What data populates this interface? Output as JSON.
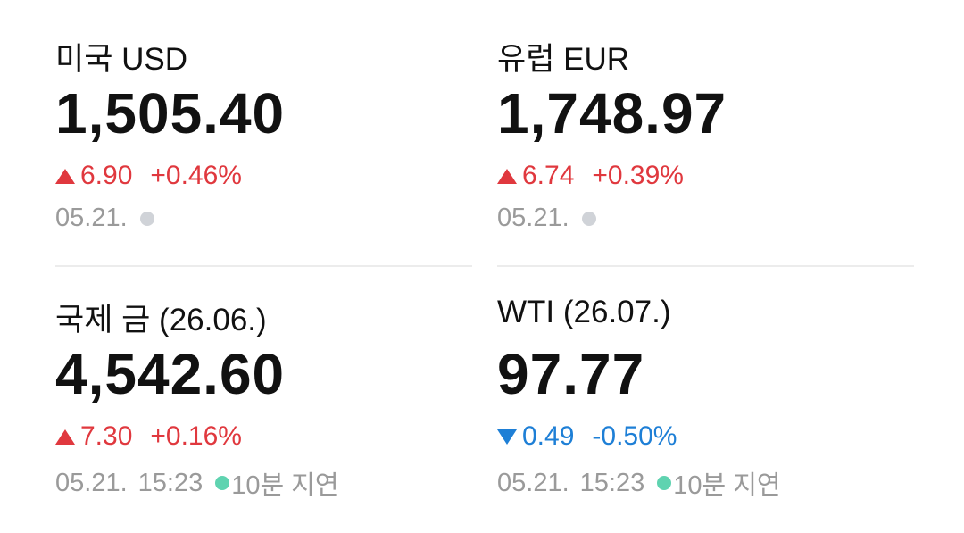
{
  "items": [
    {
      "name": "미국 USD",
      "price": "1,505.40",
      "direction": "up",
      "change": "6.90",
      "change_pct": "+0.46%",
      "date": "05.21.",
      "status": "closed"
    },
    {
      "name": "유럽 EUR",
      "price": "1,748.97",
      "direction": "up",
      "change": "6.74",
      "change_pct": "+0.39%",
      "date": "05.21.",
      "status": "closed"
    },
    {
      "name": "국제 금 (26.06.)",
      "price": "4,542.60",
      "direction": "up",
      "change": "7.30",
      "change_pct": "+0.16%",
      "date": "05.21.",
      "time": "15:23",
      "status": "open",
      "delay": "10분 지연"
    },
    {
      "name": "WTI (26.07.)",
      "price": "97.77",
      "direction": "down",
      "change": "0.49",
      "change_pct": "-0.50%",
      "date": "05.21.",
      "time": "15:23",
      "status": "open",
      "delay": "10분 지연"
    }
  ]
}
